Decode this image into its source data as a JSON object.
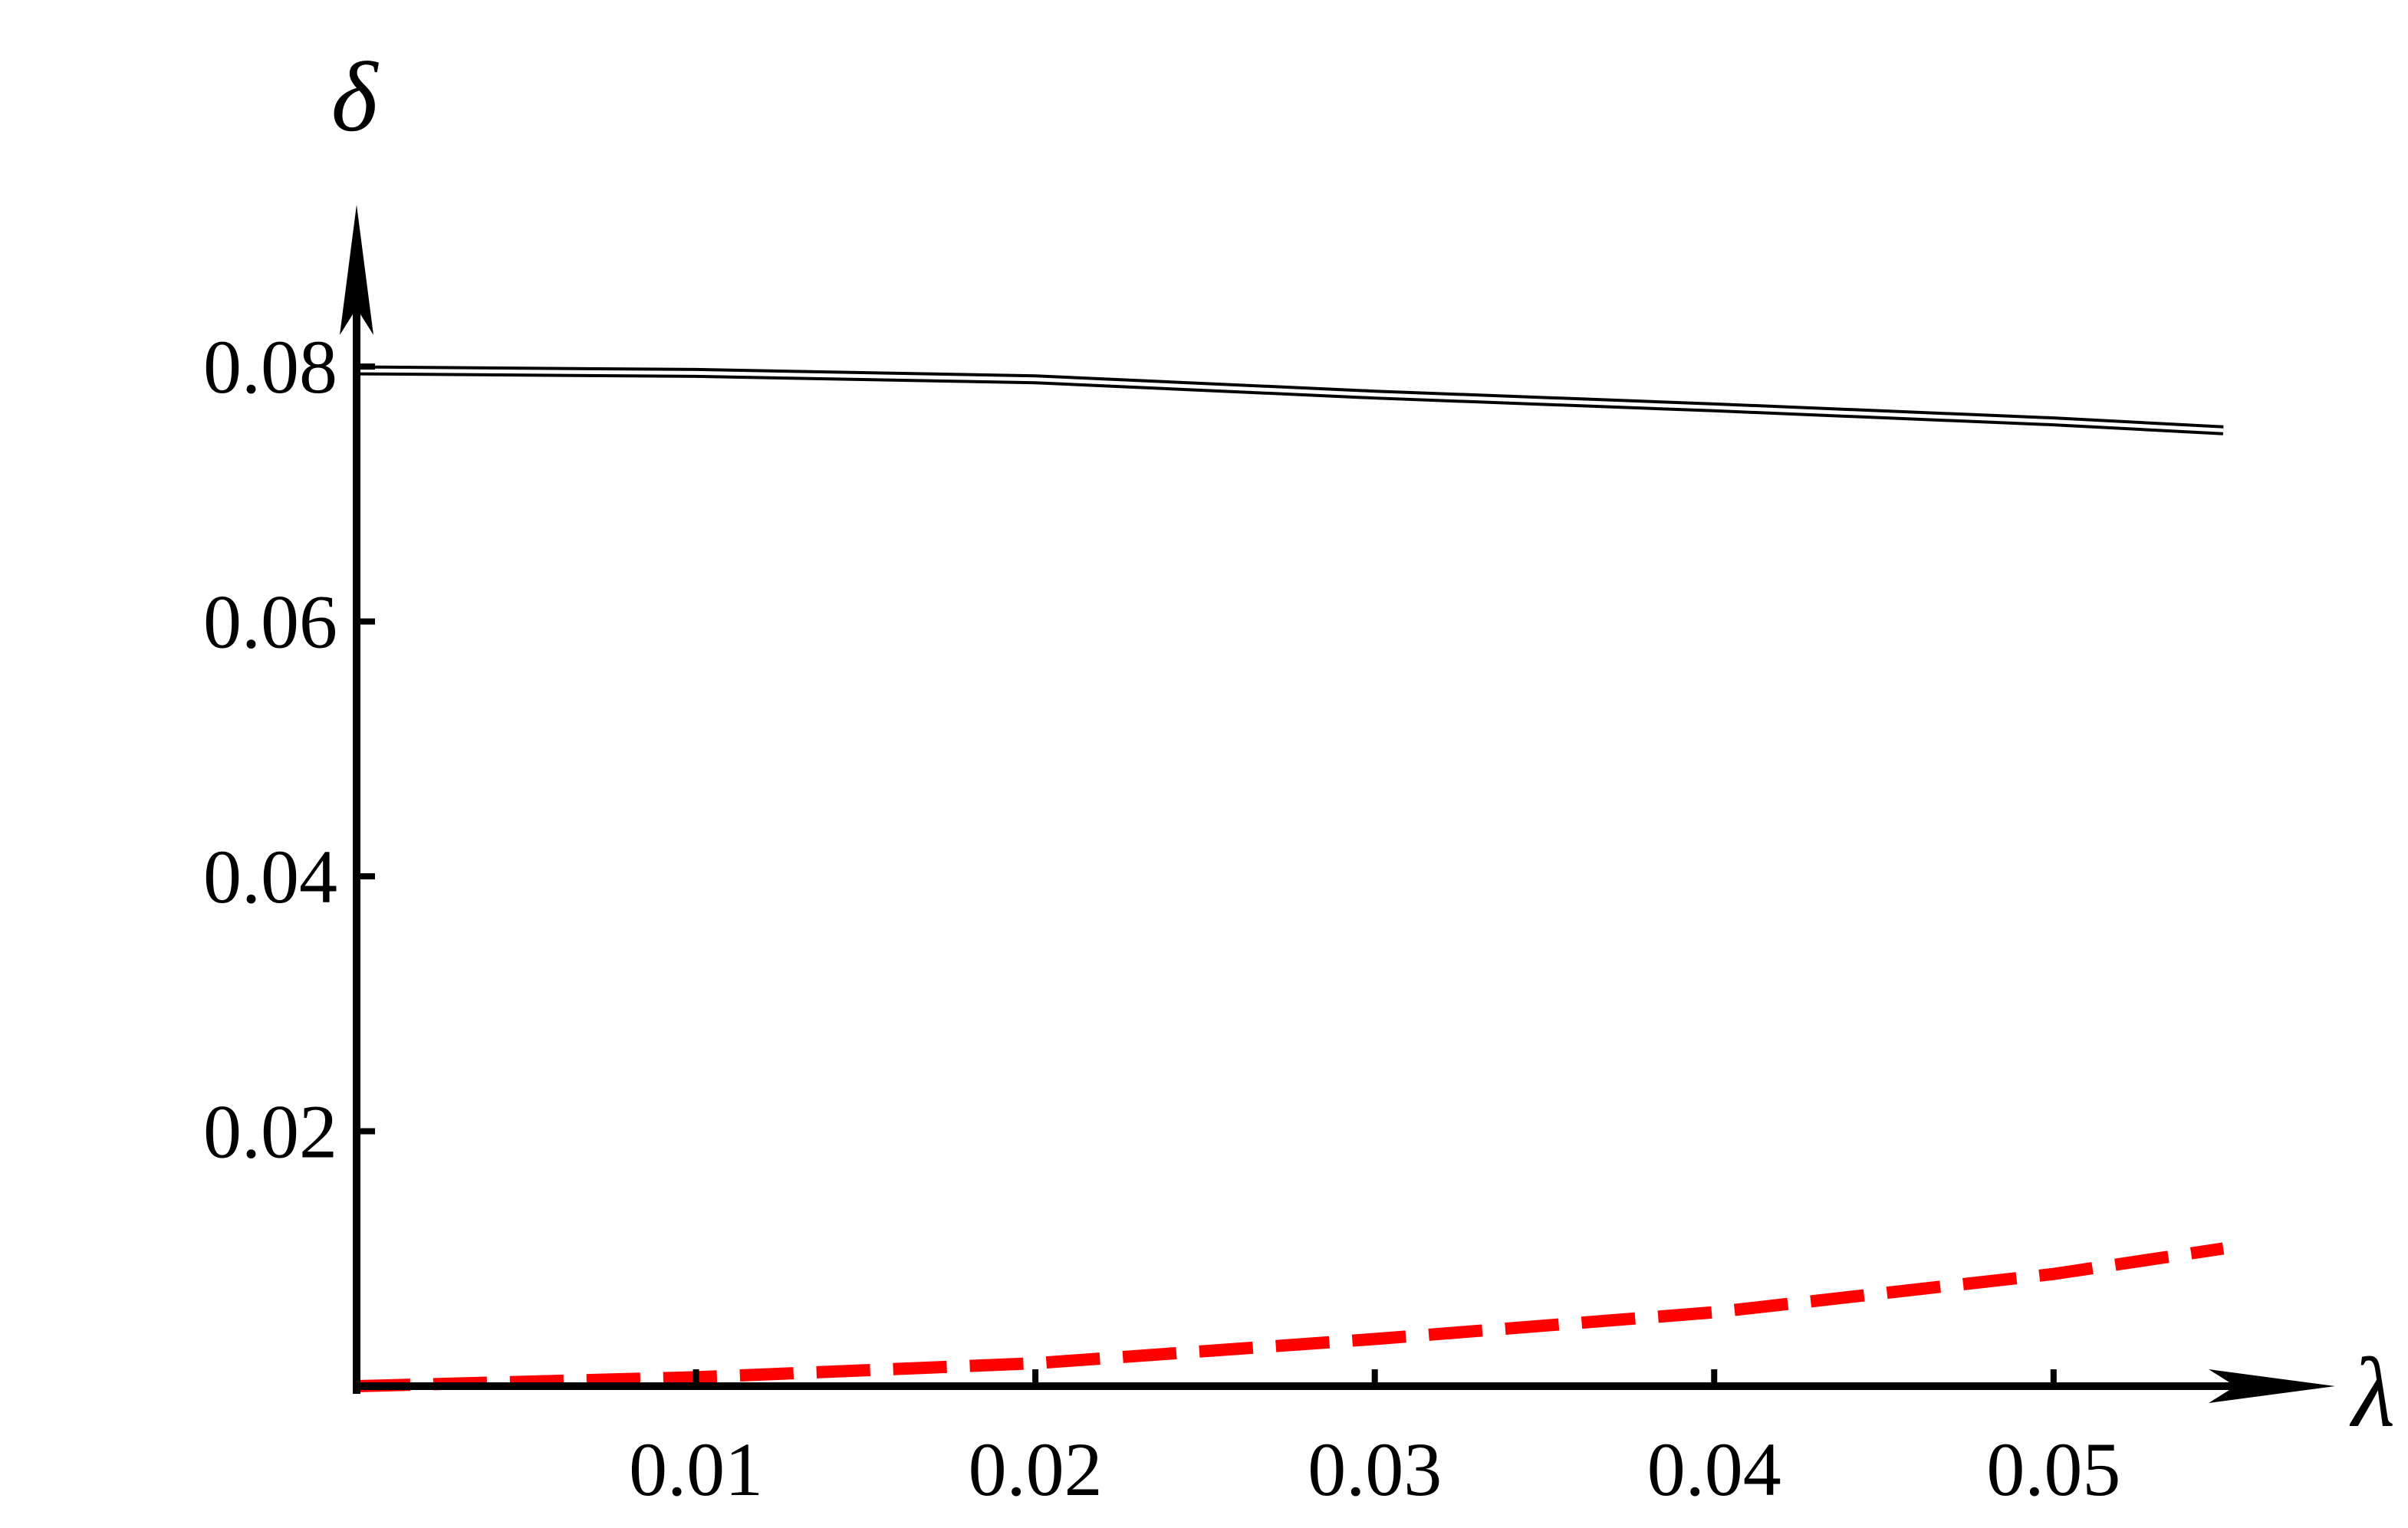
{
  "chart_data": {
    "type": "line",
    "xlabel": "λ",
    "ylabel": "δ",
    "x": [
      0,
      0.01,
      0.02,
      0.03,
      0.04,
      0.05,
      0.055
    ],
    "series": [
      {
        "color": "#000000",
        "style": "double",
        "values": [
          0.0797,
          0.0795,
          0.079,
          0.0778,
          0.0768,
          0.0757,
          0.075
        ]
      },
      {
        "color": "#ff0000",
        "style": "dashed",
        "values": [
          0,
          0.0007,
          0.0018,
          0.0037,
          0.0058,
          0.0088,
          0.0108
        ]
      }
    ],
    "xlim": [
      0,
      0.0585
    ],
    "ylim": [
      0,
      0.0927
    ],
    "xticks": [
      0.01,
      0.02,
      0.03,
      0.04,
      0.05
    ],
    "yticks": [
      0.02,
      0.04,
      0.06,
      0.08
    ]
  }
}
